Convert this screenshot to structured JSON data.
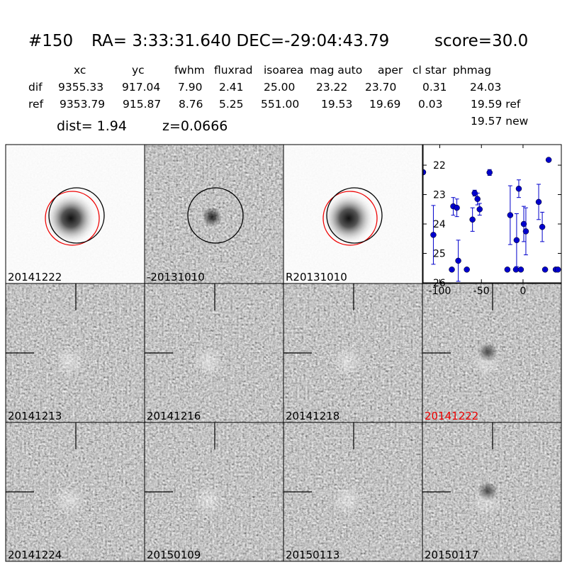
{
  "header": {
    "id": "#150",
    "coords": "RA= 3:33:31.640 DEC=-29:04:43.79",
    "score": "score=30.0"
  },
  "table": {
    "columns": [
      "xc",
      "yc",
      "fwhm",
      "fluxrad",
      "isoarea",
      "mag auto",
      "aper",
      "cl star",
      "phmag"
    ],
    "rows": [
      {
        "label": "dif",
        "cells": [
          "9355.33",
          "917.04",
          "7.90",
          "2.41",
          "25.00",
          "23.22",
          "23.70",
          "0.31",
          "24.03"
        ]
      },
      {
        "label": "ref",
        "cells": [
          "9353.79",
          "915.87",
          "8.76",
          "5.25",
          "551.00",
          "19.53",
          "19.69",
          "0.03",
          "19.59 ref"
        ]
      }
    ],
    "extra": "19.57 new"
  },
  "dist": "dist=  1.94",
  "redshift": "z=0.0666",
  "panels": [
    "20141222",
    "-20131010",
    "R20131010",
    "20141213",
    "20141216",
    "20141218",
    "20141222",
    "20141224",
    "20150109",
    "20150113",
    "20150117"
  ],
  "chart_data": {
    "type": "scatter",
    "color": "#0000cc",
    "x": [
      -120,
      -107.7,
      -85.5,
      -83.8,
      -79.5,
      -77.8,
      -67.5,
      -60.7,
      -58.1,
      -54.7,
      -52.1,
      -40.2,
      -18.8,
      -15.4,
      -8.5,
      -7.7,
      -5.1,
      -2.6,
      0.9,
      3.4,
      18.8,
      23.1,
      26.5,
      30.8,
      39.3,
      41.9
    ],
    "y": [
      22.24,
      24.37,
      25.55,
      23.4,
      23.45,
      25.25,
      25.55,
      23.85,
      22.95,
      23.15,
      23.5,
      22.25,
      25.55,
      23.7,
      25.55,
      24.55,
      22.8,
      25.55,
      24.0,
      24.25,
      23.25,
      24.1,
      25.55,
      21.82,
      25.55,
      25.55
    ],
    "errors": [
      null,
      1.0,
      null,
      0.3,
      0.3,
      0.7,
      null,
      0.4,
      0.1,
      0.2,
      0.2,
      0.1,
      null,
      1.0,
      null,
      0.9,
      0.3,
      null,
      0.6,
      0.8,
      0.6,
      0.5,
      null,
      0.05,
      null,
      null
    ],
    "xlim": [
      -120,
      46
    ],
    "ylim": [
      26,
      21.3
    ],
    "xticks": [
      -100,
      -50,
      0
    ],
    "yticks": [
      22,
      23,
      24,
      25,
      26
    ]
  }
}
